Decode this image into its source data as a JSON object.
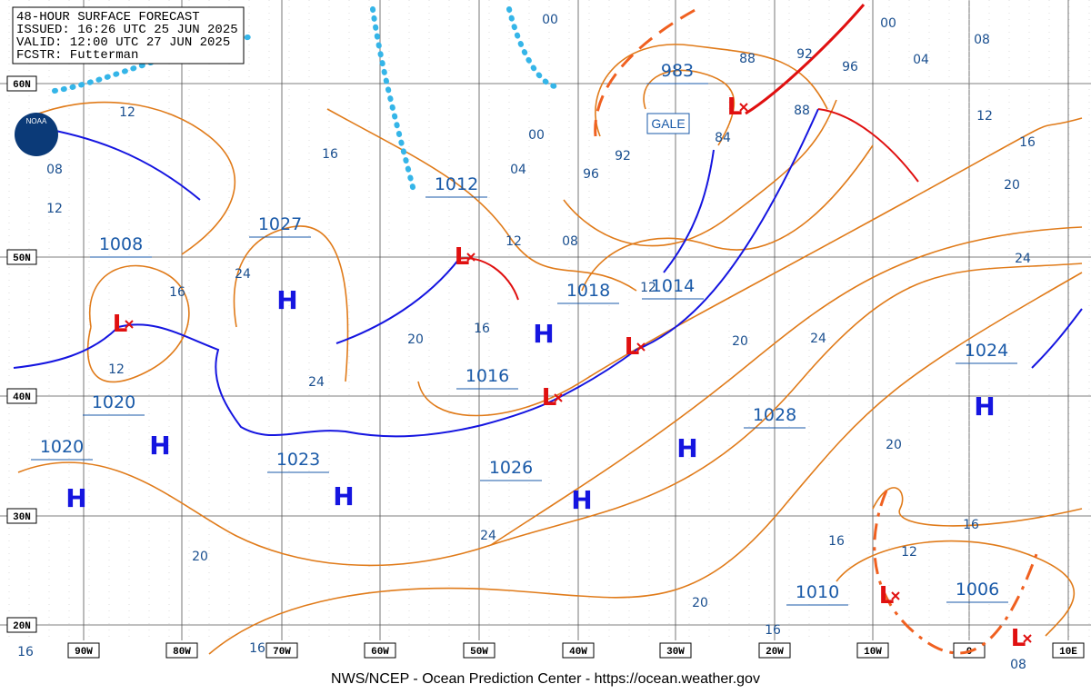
{
  "header": {
    "title": "48-HOUR SURFACE FORECAST",
    "issued": "ISSUED: 16:26 UTC 25 JUN 2025",
    "valid": "VALID: 12:00 UTC 27 JUN 2025",
    "forecaster": "FCSTR: Futterman"
  },
  "footer": "NWS/NCEP - Ocean Prediction Center - https://ocean.weather.gov",
  "logo": "NOAA",
  "gale_label": "GALE",
  "lat_labels": [
    "60N",
    "50N",
    "40N",
    "30N",
    "20N"
  ],
  "lon_labels": [
    "90W",
    "80W",
    "70W",
    "60W",
    "50W",
    "40W",
    "30W",
    "20W",
    "10W",
    "0",
    "10E"
  ],
  "high_symbol": "H",
  "low_symbol": "L",
  "pressure_labels": [
    983,
    1012,
    1027,
    1008,
    1018,
    1014,
    1016,
    1020,
    1020,
    1023,
    1026,
    1028,
    1024,
    1010,
    1006
  ],
  "isobar_labels": [
    "00",
    "00",
    "08",
    "88",
    "92",
    "96",
    "04",
    "88",
    "84",
    "12",
    "16",
    "20",
    "24",
    "12",
    "08",
    "12",
    "00",
    "04",
    "96",
    "92",
    "16",
    "12",
    "08",
    "16",
    "24",
    "16",
    "20",
    "24",
    "12",
    "12",
    "20",
    "24",
    "20",
    "24",
    "20",
    "20",
    "16",
    "16",
    "12",
    "16",
    "16",
    "16",
    "08"
  ]
}
